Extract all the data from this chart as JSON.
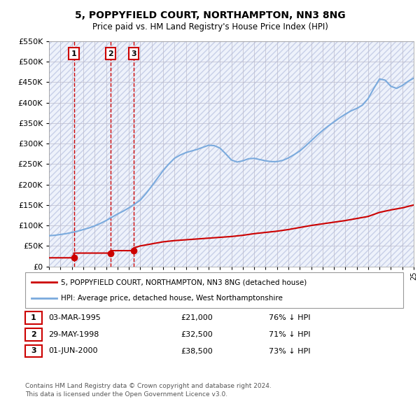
{
  "title": "5, POPPYFIELD COURT, NORTHAMPTON, NN3 8NG",
  "subtitle": "Price paid vs. HM Land Registry's House Price Index (HPI)",
  "legend_red": "5, POPPYFIELD COURT, NORTHAMPTON, NN3 8NG (detached house)",
  "legend_blue": "HPI: Average price, detached house, West Northamptonshire",
  "footer1": "Contains HM Land Registry data © Crown copyright and database right 2024.",
  "footer2": "This data is licensed under the Open Government Licence v3.0.",
  "transactions": [
    {
      "num": 1,
      "date": "03-MAR-1995",
      "price": 21000,
      "pct": "76% ↓ HPI",
      "year": 1995.17
    },
    {
      "num": 2,
      "date": "29-MAY-1998",
      "price": 32500,
      "pct": "71% ↓ HPI",
      "year": 1998.41
    },
    {
      "num": 3,
      "date": "01-JUN-2000",
      "price": 38500,
      "pct": "73% ↓ HPI",
      "year": 2000.42
    }
  ],
  "hpi_years": [
    1993,
    1993.5,
    1994,
    1994.5,
    1995,
    1995.5,
    1996,
    1996.5,
    1997,
    1997.5,
    1998,
    1998.5,
    1999,
    1999.5,
    2000,
    2000.5,
    2001,
    2001.5,
    2002,
    2002.5,
    2003,
    2003.5,
    2004,
    2004.5,
    2005,
    2005.5,
    2006,
    2006.5,
    2007,
    2007.5,
    2008,
    2008.5,
    2009,
    2009.5,
    2010,
    2010.5,
    2011,
    2011.5,
    2012,
    2012.5,
    2013,
    2013.5,
    2014,
    2014.5,
    2015,
    2015.5,
    2016,
    2016.5,
    2017,
    2017.5,
    2018,
    2018.5,
    2019,
    2019.5,
    2020,
    2020.5,
    2021,
    2021.5,
    2022,
    2022.5,
    2023,
    2023.5,
    2024,
    2024.5,
    2025
  ],
  "hpi_values": [
    75000,
    76000,
    78000,
    80000,
    83000,
    86000,
    90000,
    94000,
    99000,
    105000,
    112000,
    120000,
    128000,
    135000,
    143000,
    152000,
    162000,
    178000,
    196000,
    215000,
    234000,
    250000,
    264000,
    272000,
    278000,
    282000,
    286000,
    291000,
    296000,
    295000,
    289000,
    275000,
    260000,
    255000,
    258000,
    263000,
    264000,
    261000,
    258000,
    256000,
    256000,
    259000,
    265000,
    273000,
    282000,
    294000,
    307000,
    320000,
    332000,
    343000,
    353000,
    363000,
    372000,
    380000,
    386000,
    394000,
    410000,
    435000,
    458000,
    455000,
    440000,
    435000,
    442000,
    452000,
    460000
  ],
  "red_x": [
    1993,
    1995.17,
    1995.17,
    1998.41,
    1998.41,
    2000.42,
    2000.42,
    2001,
    2002,
    2003,
    2004,
    2005,
    2006,
    2007,
    2008,
    2009,
    2010,
    2011,
    2012,
    2013,
    2014,
    2015,
    2016,
    2017,
    2018,
    2019,
    2020,
    2021,
    2022,
    2023,
    2024,
    2025
  ],
  "red_y": [
    21000,
    21000,
    32500,
    32500,
    38500,
    38500,
    45000,
    50000,
    55000,
    60000,
    63000,
    65000,
    67000,
    69000,
    71000,
    73000,
    76000,
    80000,
    83000,
    86000,
    90000,
    95000,
    100000,
    104000,
    108000,
    112000,
    117000,
    122000,
    132000,
    138000,
    143000,
    150000
  ],
  "ylim": [
    0,
    550000
  ],
  "xlim": [
    1993,
    2025
  ],
  "background_color": "#eef2fb",
  "hatch_color": "#c8d0e8",
  "grid_color": "#bbbbcc",
  "red_color": "#cc0000",
  "blue_color": "#7aaadd"
}
